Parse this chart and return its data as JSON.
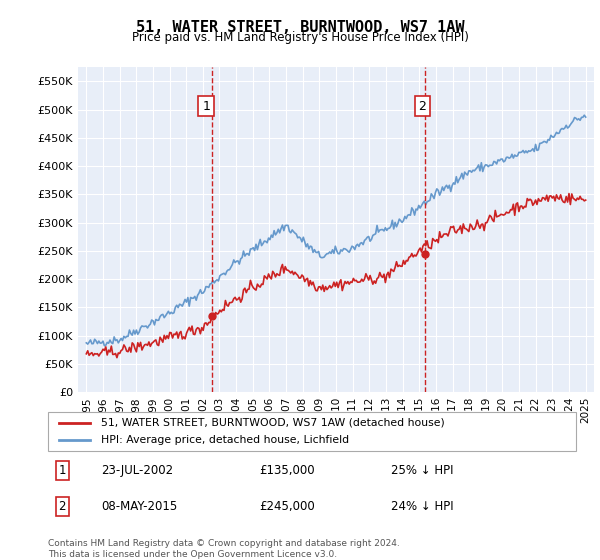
{
  "title": "51, WATER STREET, BURNTWOOD, WS7 1AW",
  "subtitle": "Price paid vs. HM Land Registry's House Price Index (HPI)",
  "ylabel_ticks": [
    "£0",
    "£50K",
    "£100K",
    "£150K",
    "£200K",
    "£250K",
    "£300K",
    "£350K",
    "£400K",
    "£450K",
    "£500K",
    "£550K"
  ],
  "ytick_values": [
    0,
    50000,
    100000,
    150000,
    200000,
    250000,
    300000,
    350000,
    400000,
    450000,
    500000,
    550000
  ],
  "ylim": [
    0,
    575000
  ],
  "xlim_start": 1994.5,
  "xlim_end": 2025.5,
  "hpi_color": "#6699cc",
  "price_color": "#cc2222",
  "bg_color": "#e8eef8",
  "grid_color": "#ffffff",
  "annotation1": {
    "x": 2002.56,
    "label": "1",
    "price": 135000,
    "date": "23-JUL-2002",
    "pct": "25% ↓ HPI"
  },
  "annotation2": {
    "x": 2015.36,
    "label": "2",
    "price": 245000,
    "date": "08-MAY-2015",
    "pct": "24% ↓ HPI"
  },
  "legend_line1": "51, WATER STREET, BURNTWOOD, WS7 1AW (detached house)",
  "legend_line2": "HPI: Average price, detached house, Lichfield",
  "footer1": "Contains HM Land Registry data © Crown copyright and database right 2024.",
  "footer2": "This data is licensed under the Open Government Licence v3.0."
}
